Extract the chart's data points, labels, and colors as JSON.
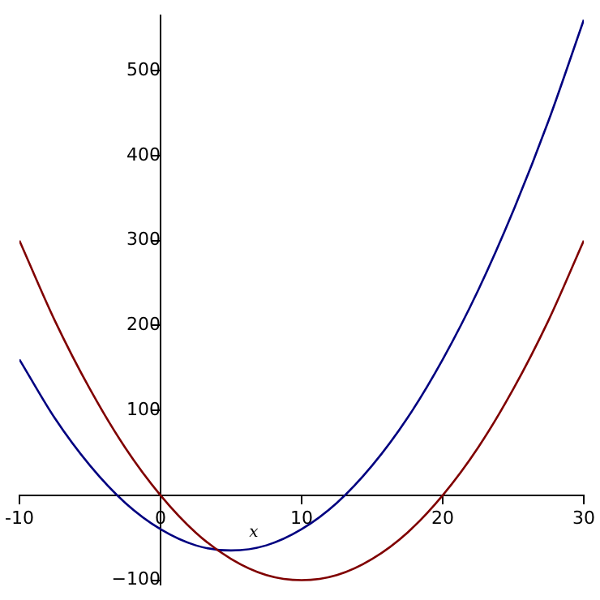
{
  "chart_data": {
    "type": "line",
    "xlabel": "x",
    "x": [
      -10,
      -7.5,
      -5,
      -2.5,
      0,
      2.5,
      5,
      7.5,
      10,
      12.5,
      15,
      17.5,
      20,
      22.5,
      25,
      27.5,
      30
    ],
    "series": [
      {
        "color": "#800000",
        "values": [
          300,
          206,
          125,
          56,
          0,
          -44,
          -75,
          -94,
          -100,
          -94,
          -75,
          -44,
          0,
          56,
          125,
          206,
          300
        ]
      },
      {
        "color": "#000080",
        "values": [
          160,
          91,
          35,
          -9,
          -40,
          -59,
          -65,
          -59,
          -40,
          -9,
          35,
          91,
          160,
          241,
          335,
          441,
          560
        ]
      }
    ],
    "xlim": [
      -10,
      30
    ],
    "ylim": [
      -105,
      565
    ],
    "xticks": [
      -10,
      0,
      10,
      20,
      30
    ],
    "yticks": [
      {
        "value": -100,
        "label": "−100"
      },
      100,
      200,
      300,
      400,
      500
    ],
    "grid": false,
    "legend": false,
    "marker": "none",
    "line_style": "solid"
  }
}
